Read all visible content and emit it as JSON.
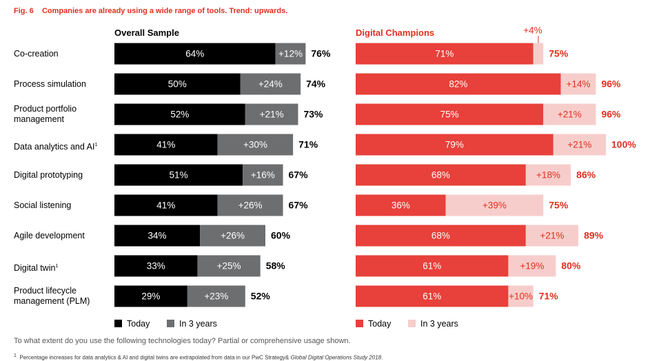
{
  "figure": {
    "label": "Fig. 6",
    "title": "Companies are already using a wide range of tools. Trend: upwards."
  },
  "colors": {
    "overall_today": "#000000",
    "overall_future": "#6d6e70",
    "champ_today": "#e8403a",
    "champ_future": "#f7cdcb",
    "accent": "#e0301e"
  },
  "chart_data": [
    {
      "type": "bar",
      "orientation": "horizontal",
      "stacked": true,
      "title": "Overall Sample",
      "categories": [
        "Co-creation",
        "Process simulation",
        "Product portfolio management",
        "Data analytics and AI¹",
        "Digital prototyping",
        "Social listening",
        "Agile development",
        "Digital twin¹",
        "Product lifecycle management (PLM)"
      ],
      "series": [
        {
          "name": "Today",
          "values": [
            64,
            50,
            52,
            41,
            51,
            41,
            34,
            33,
            29
          ],
          "labels": [
            "64%",
            "50%",
            "52%",
            "41%",
            "51%",
            "41%",
            "34%",
            "33%",
            "29%"
          ]
        },
        {
          "name": "In 3 years",
          "values": [
            12,
            24,
            21,
            30,
            16,
            26,
            26,
            25,
            23
          ],
          "labels": [
            "+12%",
            "+24%",
            "+21%",
            "+30%",
            "+16%",
            "+26%",
            "+26%",
            "+25%",
            "+23%"
          ]
        }
      ],
      "totals": [
        "76%",
        "74%",
        "73%",
        "71%",
        "67%",
        "67%",
        "60%",
        "58%",
        "52%"
      ],
      "xlim": [
        0,
        100
      ],
      "legend_position": "bottom"
    },
    {
      "type": "bar",
      "orientation": "horizontal",
      "stacked": true,
      "title": "Digital Champions",
      "categories": [
        "Co-creation",
        "Process simulation",
        "Product portfolio management",
        "Data analytics and AI¹",
        "Digital prototyping",
        "Social listening",
        "Agile development",
        "Digital twin¹",
        "Product lifecycle management (PLM)"
      ],
      "series": [
        {
          "name": "Today",
          "values": [
            71,
            82,
            75,
            79,
            68,
            36,
            68,
            61,
            61
          ],
          "labels": [
            "71%",
            "82%",
            "75%",
            "79%",
            "68%",
            "36%",
            "68%",
            "61%",
            "61%"
          ]
        },
        {
          "name": "In 3 years",
          "values": [
            4,
            14,
            21,
            21,
            18,
            39,
            21,
            19,
            10
          ],
          "labels": [
            "+4%",
            "+14%",
            "+21%",
            "+21%",
            "+18%",
            "+39%",
            "+21%",
            "+19%",
            "+10%"
          ]
        }
      ],
      "totals": [
        "75%",
        "96%",
        "96%",
        "100%",
        "86%",
        "75%",
        "89%",
        "80%",
        "71%"
      ],
      "xlim": [
        0,
        100
      ],
      "legend_position": "bottom"
    }
  ],
  "category_labels": [
    [
      "Co-creation"
    ],
    [
      "Process simulation"
    ],
    [
      "Product portfolio",
      "management"
    ],
    [
      "Data analytics and AI"
    ],
    [
      "Digital prototyping"
    ],
    [
      "Social listening"
    ],
    [
      "Agile development"
    ],
    [
      "Digital twin"
    ],
    [
      "Product lifecycle",
      "management (PLM)"
    ]
  ],
  "footnote_marks": [
    "",
    "",
    "",
    "1",
    "",
    "",
    "",
    "1",
    ""
  ],
  "legend": {
    "overall": [
      "Today",
      "In 3 years"
    ],
    "champions": [
      "Today",
      "In 3 years"
    ]
  },
  "question": "To what extent do you use the following technologies today? Partial or comprehensive usage shown.",
  "footnote": {
    "mark": "1",
    "text": "Percentage increases for data analytics & AI and digital twins are extrapolated from data in our PwC Strategy& ",
    "italic": "Global Digital Operations Study 2018",
    "end": "."
  }
}
